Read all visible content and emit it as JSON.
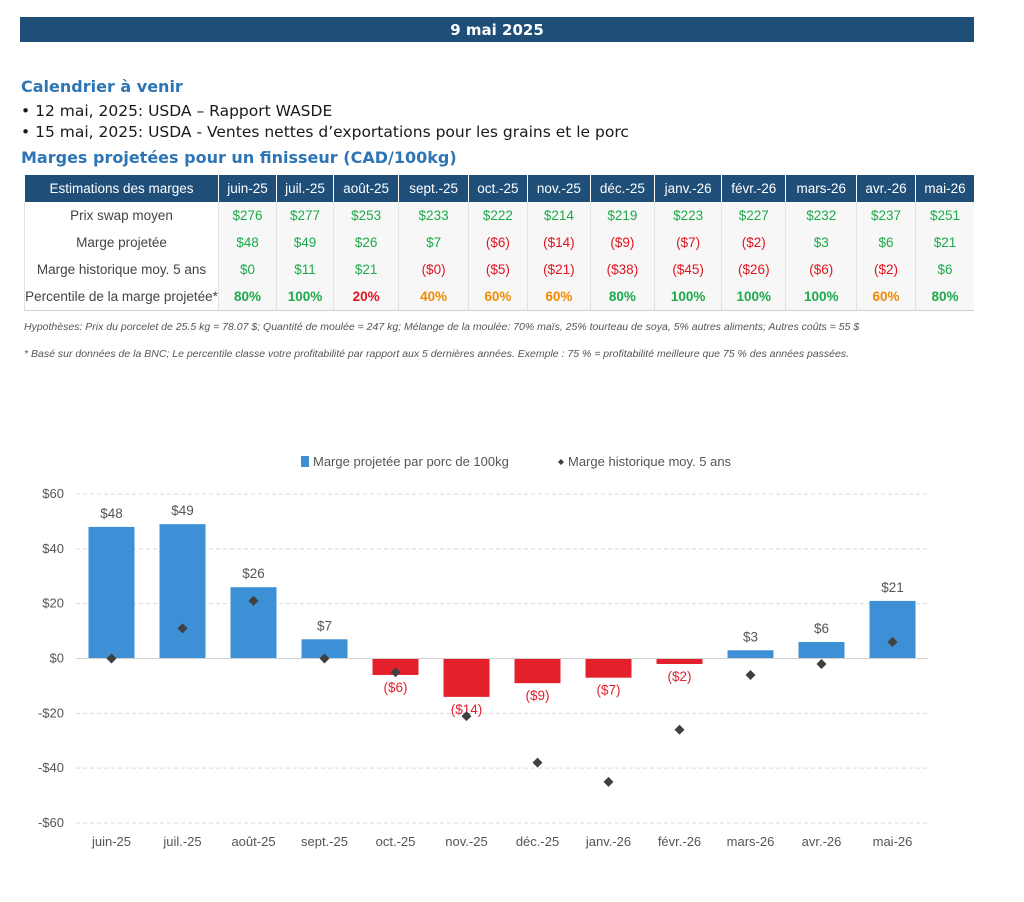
{
  "banner_date": "9 mai 2025",
  "calendar": {
    "title": "Calendrier à venir",
    "items": [
      "12 mai, 2025: USDA – Rapport WASDE",
      "15 mai, 2025: USDA - Ventes nettes d’exportations pour les grains et le porc"
    ]
  },
  "margins_section_title": "Marges projetées pour un finisseur (CAD/100kg)",
  "table": {
    "header_label": "Estimations des marges",
    "months": [
      "juin-25",
      "juil.-25",
      "août-25",
      "sept.-25",
      "oct.-25",
      "nov.-25",
      "déc.-25",
      "janv.-26",
      "févr.-26",
      "mars-26",
      "avr.-26",
      "mai-26"
    ],
    "rows": [
      {
        "label": "Prix swap moyen",
        "values": [
          "$276",
          "$277",
          "$253",
          "$233",
          "$222",
          "$214",
          "$219",
          "$223",
          "$227",
          "$232",
          "$237",
          "$251"
        ],
        "colors": [
          "pos",
          "pos",
          "pos",
          "pos",
          "pos",
          "pos",
          "pos",
          "pos",
          "pos",
          "pos",
          "pos",
          "pos"
        ]
      },
      {
        "label": "Marge projetée",
        "values": [
          "$48",
          "$49",
          "$26",
          "$7",
          "($6)",
          "($14)",
          "($9)",
          "($7)",
          "($2)",
          "$3",
          "$6",
          "$21"
        ],
        "colors": [
          "pos",
          "pos",
          "pos",
          "pos",
          "neg",
          "neg",
          "neg",
          "neg",
          "neg",
          "pos",
          "pos",
          "pos"
        ]
      },
      {
        "label": "Marge historique moy. 5 ans",
        "values": [
          "$0",
          "$11",
          "$21",
          "($0)",
          "($5)",
          "($21)",
          "($38)",
          "($45)",
          "($26)",
          "($6)",
          "($2)",
          "$6"
        ],
        "colors": [
          "pos",
          "pos",
          "pos",
          "neg",
          "neg",
          "neg",
          "neg",
          "neg",
          "neg",
          "neg",
          "neg",
          "pos"
        ]
      },
      {
        "label": "Percentile de la marge projetée*",
        "values": [
          "80%",
          "100%",
          "20%",
          "40%",
          "60%",
          "60%",
          "80%",
          "100%",
          "100%",
          "100%",
          "60%",
          "80%"
        ],
        "colors": [
          "c-green",
          "c-green",
          "c-red",
          "c-orange",
          "c-orange",
          "c-orange",
          "c-green",
          "c-green",
          "c-green",
          "c-green",
          "c-orange",
          "c-green"
        ]
      }
    ]
  },
  "notes": {
    "hypotheses": "Hypothèses: Prix du porcelet de 25.5 kg = 78.07 $; Quantité de moulée = 247 kg; Mélange de la moulée: 70% maïs, 25% tourteau de soya, 5% autres aliments; Autres coûts = 55 $",
    "footnote": "* Basé sur données de la BNC; Le percentile classe votre profitabilité par rapport aux 5 dernières années. Exemple : 75 % = profitabilité meilleure que 75 % des années passées."
  },
  "colors": {
    "banner": "#1f4e79",
    "title_blue": "#2e75b6",
    "bar_positive": "#3d8fd6",
    "bar_negative": "#e3202b",
    "marker": "#404040",
    "label_positive": "#555555",
    "label_negative": "#e3202b"
  },
  "chart_data": {
    "type": "bar",
    "categories": [
      "juin-25",
      "juil.-25",
      "août-25",
      "sept.-25",
      "oct.-25",
      "nov.-25",
      "déc.-25",
      "janv.-26",
      "févr.-26",
      "mars-26",
      "avr.-26",
      "mai-26"
    ],
    "series": [
      {
        "name": "Marge projetée par porc de 100kg",
        "type": "bar",
        "values": [
          48,
          49,
          26,
          7,
          -6,
          -14,
          -9,
          -7,
          -2,
          3,
          6,
          21
        ],
        "labels": [
          "$48",
          "$49",
          "$26",
          "$7",
          "($6)",
          "($14)",
          "($9)",
          "($7)",
          "($2)",
          "$3",
          "$6",
          "$21"
        ]
      },
      {
        "name": "Marge historique moy. 5 ans",
        "type": "scatter",
        "marker": "diamond",
        "values": [
          0,
          11,
          21,
          0,
          -5,
          -21,
          -38,
          -45,
          -26,
          -6,
          -2,
          6
        ]
      }
    ],
    "y_ticks": [
      60,
      40,
      20,
      0,
      -20,
      -40,
      -60
    ],
    "y_tick_labels": [
      "$60",
      "$40",
      "$20",
      "$0",
      "-$20",
      "-$40",
      "-$60"
    ],
    "ylim": [
      -60,
      60
    ],
    "grid": true,
    "legend": "top-center"
  }
}
